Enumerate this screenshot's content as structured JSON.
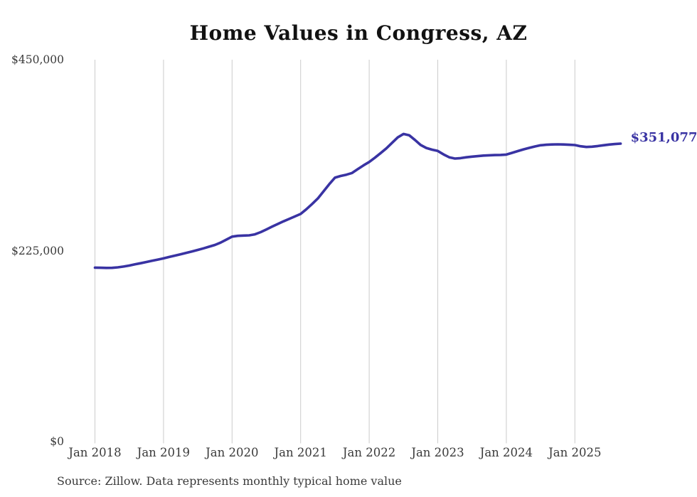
{
  "title": "Home Values in Congress, AZ",
  "source_note": "Source: Zillow. Data represents monthly typical home value",
  "end_label": "$351,077",
  "colors": {
    "line": "#3933A3",
    "end_label": "#3933A3",
    "grid": "#cccccc",
    "title_text": "#121212",
    "axis_text": "#3a3a3a",
    "background": "#ffffff"
  },
  "chart_data": {
    "type": "line",
    "title": "Home Values in Congress, AZ",
    "xlabel": "",
    "ylabel": "",
    "ylim": [
      0,
      450000
    ],
    "grid": "vertical-only",
    "legend": "none",
    "series_name": "Typical home value (monthly)",
    "last_value": 351077,
    "last_value_label": "$351,077",
    "yticks": [
      {
        "value": 0,
        "label": "$0"
      },
      {
        "value": 225000,
        "label": "$225,000"
      },
      {
        "value": 450000,
        "label": "$450,000"
      }
    ],
    "xticks": [
      "Jan 2018",
      "Jan 2019",
      "Jan 2020",
      "Jan 2021",
      "Jan 2022",
      "Jan 2023",
      "Jan 2024",
      "Jan 2025"
    ],
    "x": [
      "Jan 2018",
      "Feb 2018",
      "Mar 2018",
      "Apr 2018",
      "May 2018",
      "Jun 2018",
      "Jul 2018",
      "Aug 2018",
      "Sep 2018",
      "Oct 2018",
      "Nov 2018",
      "Dec 2018",
      "Jan 2019",
      "Feb 2019",
      "Mar 2019",
      "Apr 2019",
      "May 2019",
      "Jun 2019",
      "Jul 2019",
      "Aug 2019",
      "Sep 2019",
      "Oct 2019",
      "Nov 2019",
      "Dec 2019",
      "Jan 2020",
      "Feb 2020",
      "Mar 2020",
      "Apr 2020",
      "May 2020",
      "Jun 2020",
      "Jul 2020",
      "Aug 2020",
      "Sep 2020",
      "Oct 2020",
      "Nov 2020",
      "Dec 2020",
      "Jan 2021",
      "Feb 2021",
      "Mar 2021",
      "Apr 2021",
      "May 2021",
      "Jun 2021",
      "Jul 2021",
      "Aug 2021",
      "Sep 2021",
      "Oct 2021",
      "Nov 2021",
      "Dec 2021",
      "Jan 2022",
      "Feb 2022",
      "Mar 2022",
      "Apr 2022",
      "May 2022",
      "Jun 2022",
      "Jul 2022",
      "Aug 2022",
      "Sep 2022",
      "Oct 2022",
      "Nov 2022",
      "Dec 2022",
      "Jan 2023",
      "Feb 2023",
      "Mar 2023",
      "Apr 2023",
      "May 2023",
      "Jun 2023",
      "Jul 2023",
      "Aug 2023",
      "Sep 2023",
      "Oct 2023",
      "Nov 2023",
      "Dec 2023",
      "Jan 2024",
      "Feb 2024",
      "Mar 2024",
      "Apr 2024",
      "May 2024",
      "Jun 2024",
      "Jul 2024",
      "Aug 2024",
      "Sep 2024",
      "Oct 2024",
      "Nov 2024",
      "Dec 2024",
      "Jan 2025",
      "Feb 2025",
      "Mar 2025",
      "Apr 2025",
      "May 2025",
      "Jun 2025",
      "Jul 2025",
      "Aug 2025",
      "Sep 2025"
    ],
    "values": [
      205000,
      204800,
      204600,
      204700,
      205300,
      206200,
      207400,
      208800,
      210200,
      211600,
      213000,
      214400,
      215900,
      217500,
      219100,
      220700,
      222400,
      224100,
      225800,
      227700,
      229700,
      231700,
      234500,
      238000,
      241500,
      242400,
      242800,
      243000,
      244200,
      246800,
      250000,
      253200,
      256400,
      259500,
      262400,
      265300,
      268200,
      273800,
      280000,
      286400,
      294800,
      303300,
      311000,
      313000,
      314500,
      316500,
      321000,
      325500,
      329500,
      334500,
      340000,
      345500,
      352000,
      358500,
      362500,
      361000,
      355500,
      349500,
      346000,
      344000,
      342500,
      338500,
      335000,
      333500,
      334000,
      335000,
      335800,
      336400,
      337000,
      337400,
      337600,
      337800,
      338200,
      340200,
      342300,
      344300,
      346100,
      347800,
      349200,
      349800,
      350100,
      350300,
      350100,
      349800,
      349400,
      348000,
      347200,
      347500,
      348300,
      349200,
      350000,
      350600,
      351077
    ]
  }
}
